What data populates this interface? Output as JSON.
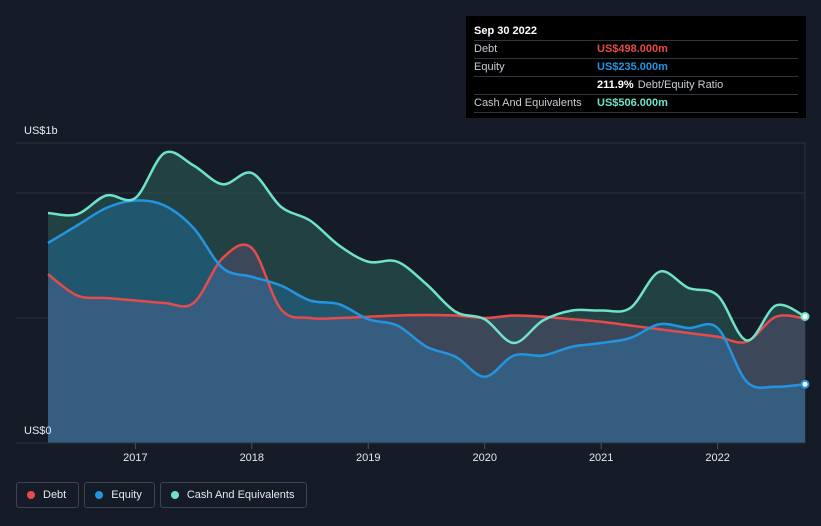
{
  "tooltip": {
    "date": "Sep 30 2022",
    "debt_label": "Debt",
    "debt_value": "US$498.000m",
    "equity_label": "Equity",
    "equity_value": "US$235.000m",
    "ratio_value": "211.9%",
    "ratio_label": "Debt/Equity Ratio",
    "cash_label": "Cash And Equivalents",
    "cash_value": "US$506.000m"
  },
  "colors": {
    "debt": "#e64b4b",
    "equity": "#2494e0",
    "cash": "#6fe3c9"
  },
  "legend": [
    {
      "label": "Debt",
      "color": "#e64b4b"
    },
    {
      "label": "Equity",
      "color": "#2494e0"
    },
    {
      "label": "Cash And Equivalents",
      "color": "#6fe3c9"
    }
  ],
  "chart_data": {
    "type": "area",
    "y_labels": [
      "US$1b",
      "US$0"
    ],
    "ylim": [
      0,
      1200
    ],
    "xlim": [
      2016.25,
      2022.75
    ],
    "x_ticks": [
      {
        "value": 2017,
        "label": "2017"
      },
      {
        "value": 2018,
        "label": "2018"
      },
      {
        "value": 2019,
        "label": "2019"
      },
      {
        "value": 2020,
        "label": "2020"
      },
      {
        "value": 2021,
        "label": "2021"
      },
      {
        "value": 2022,
        "label": "2022"
      }
    ],
    "grid": true,
    "legend_position": "bottom-left",
    "series": [
      {
        "name": "Cash And Equivalents",
        "points": [
          [
            2016.25,
            920
          ],
          [
            2016.5,
            915
          ],
          [
            2016.75,
            990
          ],
          [
            2017.0,
            980
          ],
          [
            2017.25,
            1160
          ],
          [
            2017.5,
            1110
          ],
          [
            2017.75,
            1035
          ],
          [
            2018.0,
            1080
          ],
          [
            2018.25,
            945
          ],
          [
            2018.5,
            890
          ],
          [
            2018.75,
            790
          ],
          [
            2019.0,
            725
          ],
          [
            2019.25,
            725
          ],
          [
            2019.5,
            635
          ],
          [
            2019.75,
            525
          ],
          [
            2020.0,
            495
          ],
          [
            2020.25,
            400
          ],
          [
            2020.5,
            490
          ],
          [
            2020.75,
            530
          ],
          [
            2021.0,
            530
          ],
          [
            2021.25,
            540
          ],
          [
            2021.5,
            685
          ],
          [
            2021.75,
            620
          ],
          [
            2022.0,
            590
          ],
          [
            2022.25,
            410
          ],
          [
            2022.5,
            550
          ],
          [
            2022.75,
            506
          ]
        ]
      },
      {
        "name": "Equity",
        "points": [
          [
            2016.25,
            800
          ],
          [
            2016.5,
            870
          ],
          [
            2016.75,
            940
          ],
          [
            2017.0,
            970
          ],
          [
            2017.25,
            950
          ],
          [
            2017.5,
            860
          ],
          [
            2017.75,
            700
          ],
          [
            2018.0,
            665
          ],
          [
            2018.25,
            630
          ],
          [
            2018.5,
            570
          ],
          [
            2018.75,
            555
          ],
          [
            2019.0,
            495
          ],
          [
            2019.25,
            470
          ],
          [
            2019.5,
            385
          ],
          [
            2019.75,
            345
          ],
          [
            2020.0,
            265
          ],
          [
            2020.25,
            350
          ],
          [
            2020.5,
            350
          ],
          [
            2020.75,
            385
          ],
          [
            2021.0,
            400
          ],
          [
            2021.25,
            420
          ],
          [
            2021.5,
            475
          ],
          [
            2021.75,
            460
          ],
          [
            2022.0,
            460
          ],
          [
            2022.25,
            245
          ],
          [
            2022.5,
            225
          ],
          [
            2022.75,
            235
          ]
        ]
      },
      {
        "name": "Debt",
        "points": [
          [
            2016.25,
            675
          ],
          [
            2016.5,
            590
          ],
          [
            2016.75,
            580
          ],
          [
            2017.0,
            570
          ],
          [
            2017.25,
            560
          ],
          [
            2017.5,
            560
          ],
          [
            2017.75,
            740
          ],
          [
            2018.0,
            780
          ],
          [
            2018.25,
            535
          ],
          [
            2018.5,
            500
          ],
          [
            2018.75,
            500
          ],
          [
            2019.0,
            505
          ],
          [
            2019.25,
            510
          ],
          [
            2019.5,
            512
          ],
          [
            2019.75,
            510
          ],
          [
            2020.0,
            500
          ],
          [
            2020.25,
            510
          ],
          [
            2020.5,
            505
          ],
          [
            2020.75,
            495
          ],
          [
            2021.0,
            485
          ],
          [
            2021.25,
            470
          ],
          [
            2021.5,
            455
          ],
          [
            2021.75,
            440
          ],
          [
            2022.0,
            425
          ],
          [
            2022.25,
            405
          ],
          [
            2022.5,
            505
          ],
          [
            2022.75,
            498
          ]
        ]
      }
    ]
  }
}
